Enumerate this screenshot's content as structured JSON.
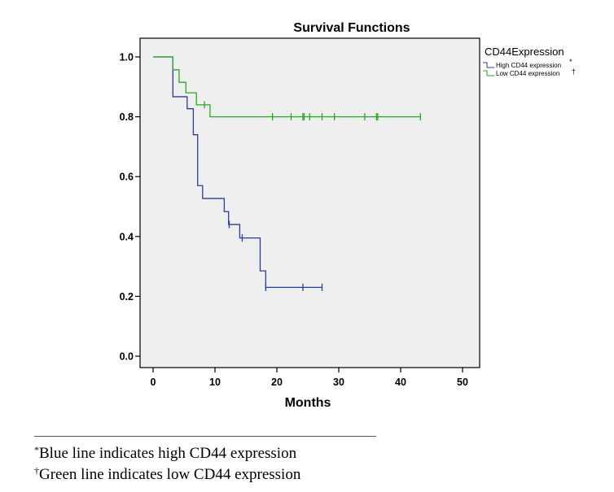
{
  "chart_data": {
    "type": "line",
    "title": "Survival Functions",
    "xlabel": "Months",
    "ylabel": "",
    "xlim": [
      0,
      50
    ],
    "ylim": [
      0,
      1
    ],
    "x_ticks": [
      0,
      10,
      20,
      30,
      40,
      50
    ],
    "x_tick_labels": [
      "0",
      "10",
      "20",
      "30",
      "40",
      "50"
    ],
    "y_ticks": [
      0,
      0.2,
      0.4,
      0.6,
      0.8,
      1.0
    ],
    "y_tick_labels": [
      "0.0",
      "0.2",
      "0.4",
      "0.6",
      "0.8",
      "1.0"
    ],
    "legend": {
      "title": "CD44Expression",
      "position": "top-right, outside plot",
      "entries": [
        {
          "label": "High CD44 expression",
          "mark": "*"
        },
        {
          "label": "Low CD44 expression",
          "mark": "†"
        }
      ]
    },
    "series": [
      {
        "name": "High CD44 expression",
        "color": "#2b3aa0",
        "step_x": [
          0,
          3.2,
          5.5,
          6.5,
          7.2,
          8.0,
          11.5,
          12.2,
          14.0,
          17.3,
          18.2,
          27.3
        ],
        "step_y": [
          1.0,
          0.867,
          0.827,
          0.74,
          0.57,
          0.527,
          0.483,
          0.44,
          0.395,
          0.285,
          0.23,
          0.23
        ],
        "censored_x": [
          12.3,
          14.4,
          18.2,
          24.2,
          27.3
        ],
        "censored_y": [
          0.44,
          0.395,
          0.23,
          0.23,
          0.23
        ]
      },
      {
        "name": "Low CD44 expression",
        "color": "#22aa22",
        "step_x": [
          0,
          3.2,
          4.2,
          5.3,
          7.0,
          9.2,
          43.2
        ],
        "step_y": [
          1.0,
          0.957,
          0.915,
          0.88,
          0.84,
          0.8,
          0.8
        ],
        "censored_x": [
          8.3,
          19.3,
          22.3,
          24.2,
          24.4,
          25.3,
          27.3,
          29.3,
          34.2,
          36.1,
          36.3,
          43.2
        ],
        "censored_y": [
          0.84,
          0.8,
          0.8,
          0.8,
          0.8,
          0.8,
          0.8,
          0.8,
          0.8,
          0.8,
          0.8,
          0.8
        ]
      }
    ]
  },
  "footnotes": [
    {
      "mark": "*",
      "text": "Blue line indicates high CD44 expression"
    },
    {
      "mark": "†",
      "text": "Green line indicates low CD44 expression"
    }
  ]
}
